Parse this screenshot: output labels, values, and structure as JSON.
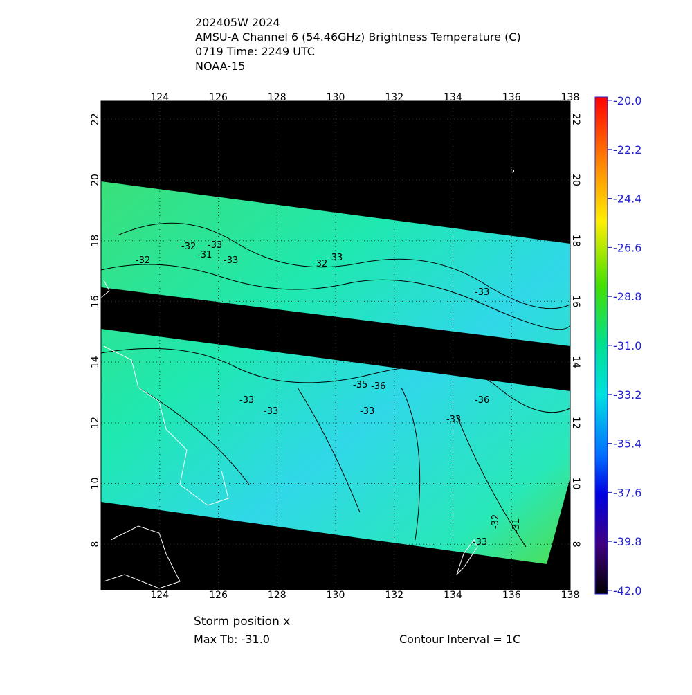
{
  "header": {
    "lines": [
      "202405W 2024",
      "AMSU-A Channel 6 (54.46GHz) Brightness Temperature (C)",
      "0719 Time: 2249 UTC",
      "NOAA-15"
    ]
  },
  "map": {
    "lon_lim": [
      122,
      138
    ],
    "lat_lim": [
      6.5,
      22.6
    ],
    "lon_ticks": [
      124,
      126,
      128,
      130,
      132,
      134,
      136,
      138
    ],
    "lat_ticks": [
      8,
      10,
      12,
      14,
      16,
      18,
      20,
      22
    ],
    "contour_labels": [
      "-32",
      "-33",
      "-31",
      "-32",
      "-33",
      "-32",
      "-33",
      "-33",
      "-33",
      "-33",
      "-35",
      "-36",
      "-33",
      "-36",
      "-33",
      "-32",
      "-31",
      "-33"
    ]
  },
  "colorbar": {
    "lim": [
      -42,
      -20
    ],
    "ticks": [
      {
        "value": -20,
        "label": "-20.0"
      },
      {
        "value": -22.2,
        "label": "-22.2"
      },
      {
        "value": -24.4,
        "label": "-24.4"
      },
      {
        "value": -26.6,
        "label": "-26.6"
      },
      {
        "value": -28.8,
        "label": "-28.8"
      },
      {
        "value": -31,
        "label": "-31.0"
      },
      {
        "value": -33.2,
        "label": "-33.2"
      },
      {
        "value": -35.4,
        "label": "-35.4"
      },
      {
        "value": -37.6,
        "label": "-37.6"
      },
      {
        "value": -39.8,
        "label": "-39.8"
      },
      {
        "value": -42,
        "label": "-42.0"
      }
    ]
  },
  "footer": {
    "storm": "Storm position x",
    "max_tb": "Max Tb: -31.0",
    "interval": "Contour Interval = 1C"
  }
}
